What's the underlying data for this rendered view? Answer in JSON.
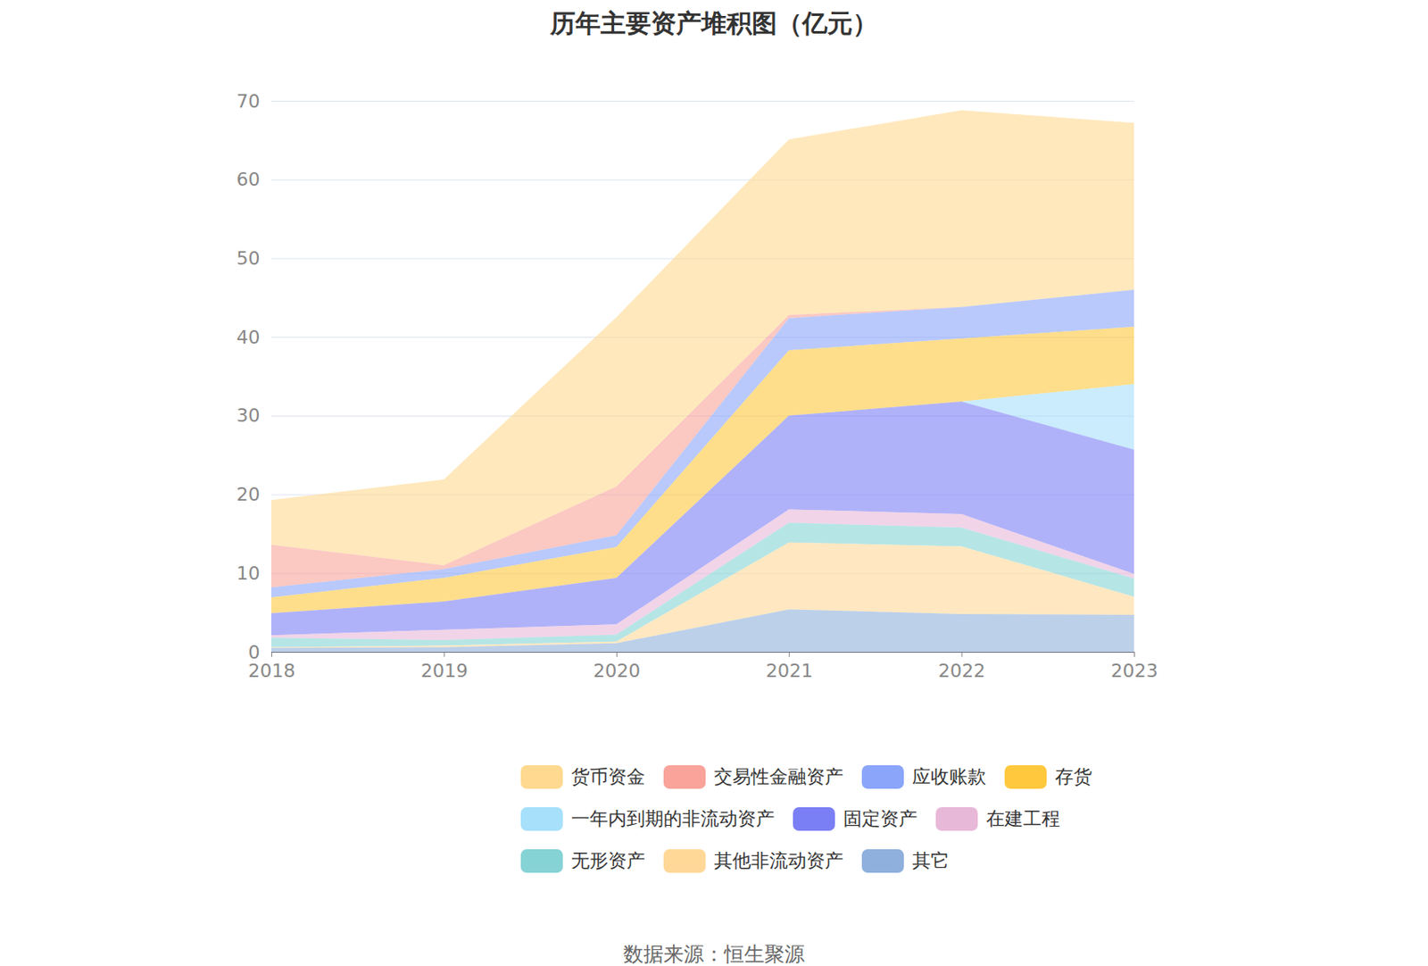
{
  "chart_data": {
    "type": "area",
    "title": "历年主要资产堆积图（亿元）",
    "caption": "数据来源：恒生聚源",
    "x": [
      2018,
      2019,
      2020,
      2021,
      2022,
      2023
    ],
    "xlim": [
      2018,
      2023
    ],
    "xticks": [
      2018,
      2019,
      2020,
      2021,
      2022,
      2023
    ],
    "ylim": [
      0,
      70
    ],
    "yticks": [
      0,
      10,
      20,
      30,
      40,
      50,
      60,
      70
    ],
    "grid": true,
    "stacked": true,
    "series": [
      {
        "name": "货币资金",
        "color": "#ffd98f",
        "values": [
          5.7,
          10.9,
          21.5,
          22.3,
          25.0,
          21.2
        ]
      },
      {
        "name": "交易性金融资产",
        "color": "#f9a39a",
        "values": [
          5.4,
          0.5,
          6.2,
          0.4,
          0,
          0
        ]
      },
      {
        "name": "应收账款",
        "color": "#8aa5fa",
        "values": [
          1.3,
          1.1,
          1.5,
          4.1,
          4.0,
          4.7
        ]
      },
      {
        "name": "存货",
        "color": "#ffc83d",
        "values": [
          2.0,
          3.0,
          3.9,
          8.3,
          8.0,
          7.3
        ]
      },
      {
        "name": "一年内到期的非流动资产",
        "color": "#a6e0fb",
        "values": [
          0,
          0,
          0,
          0,
          0,
          8.3
        ]
      },
      {
        "name": "固定资产",
        "color": "#7b7ff5",
        "values": [
          2.8,
          3.6,
          5.9,
          11.9,
          14.3,
          15.8
        ]
      },
      {
        "name": "在建工程",
        "color": "#e8b8d8",
        "values": [
          0.3,
          1.3,
          1.3,
          1.7,
          1.7,
          0.6
        ]
      },
      {
        "name": "无形资产",
        "color": "#86d3d6",
        "values": [
          1.2,
          0.7,
          0.9,
          2.5,
          2.4,
          2.3
        ]
      },
      {
        "name": "其他非流动资产",
        "color": "#ffd898",
        "values": [
          0.1,
          0.2,
          0.2,
          8.5,
          8.6,
          2.3
        ]
      },
      {
        "name": "其它",
        "color": "#8fb0dc",
        "values": [
          0.5,
          0.6,
          1.1,
          5.4,
          4.8,
          4.7
        ]
      }
    ]
  }
}
